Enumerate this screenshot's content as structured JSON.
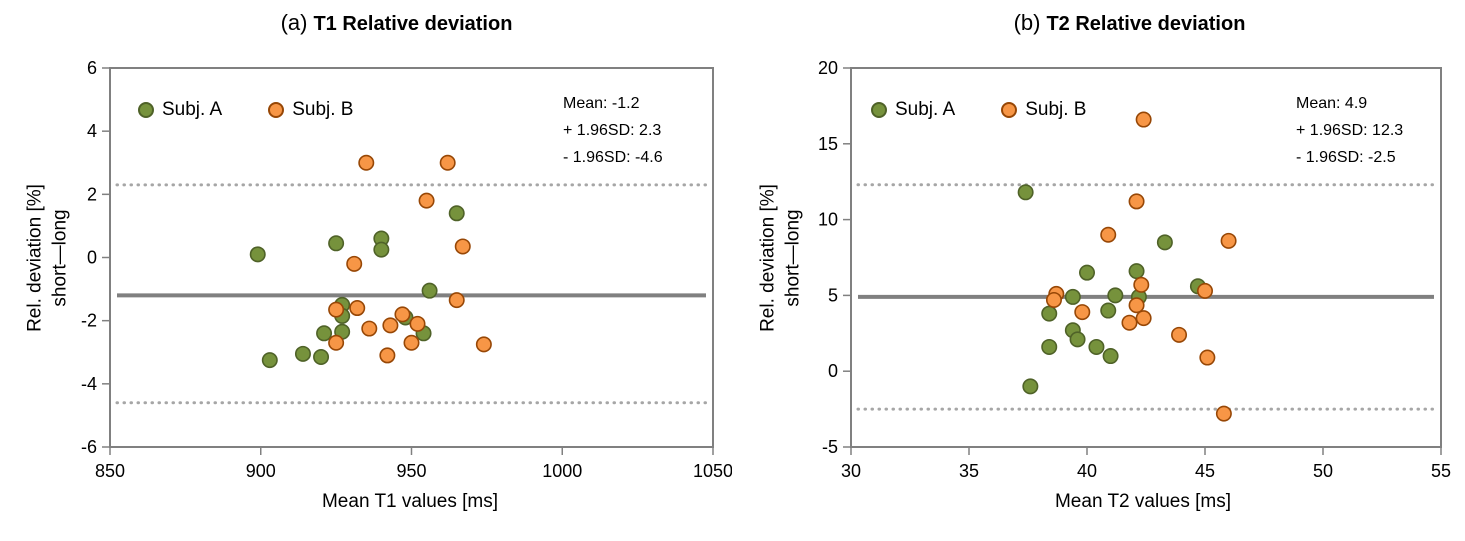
{
  "colors": {
    "background": "#ffffff",
    "text": "#000000",
    "axis": "#808080",
    "mean_line": "#808080",
    "loa_line": "#a6a6a6"
  },
  "chart_data": [
    {
      "type": "scatter",
      "title_prefix": "(a)",
      "title": "T1 Relative deviation",
      "xlabel": "Mean T1 values [ms]",
      "ylabel_line1": "Rel. deviation [%]",
      "ylabel_line2": "short—long",
      "xlim": [
        850,
        1050
      ],
      "ylim": [
        -6,
        6
      ],
      "xticks": [
        850,
        900,
        950,
        1000,
        1050
      ],
      "yticks": [
        6,
        4,
        2,
        0,
        -2,
        -4,
        -6
      ],
      "mean": -1.2,
      "upper_loa": 2.3,
      "lower_loa": -4.6,
      "stats_lines": [
        "Mean: -1.2",
        "+ 1.96SD: 2.3",
        "- 1.96SD: -4.6"
      ],
      "legend_position": "top-left",
      "grid": false,
      "series": [
        {
          "name": "Subj. A",
          "fill": "#76923C",
          "stroke": "#4F6228",
          "points": [
            [
              899,
              0.1
            ],
            [
              925,
              0.45
            ],
            [
              940,
              0.6
            ],
            [
              940,
              0.25
            ],
            [
              965,
              1.4
            ],
            [
              956,
              -1.05
            ],
            [
              927,
              -1.5
            ],
            [
              927,
              -1.85
            ],
            [
              948,
              -1.9
            ],
            [
              921,
              -2.4
            ],
            [
              927,
              -2.35
            ],
            [
              954,
              -2.4
            ],
            [
              903,
              -3.25
            ],
            [
              914,
              -3.05
            ],
            [
              920,
              -3.15
            ]
          ]
        },
        {
          "name": "Subj. B",
          "fill": "#F79646",
          "stroke": "#974706",
          "points": [
            [
              935,
              3.0
            ],
            [
              962,
              3.0
            ],
            [
              955,
              1.8
            ],
            [
              967,
              0.35
            ],
            [
              931,
              -0.2
            ],
            [
              965,
              -1.35
            ],
            [
              925,
              -1.65
            ],
            [
              932,
              -1.6
            ],
            [
              947,
              -1.8
            ],
            [
              952,
              -2.1
            ],
            [
              943,
              -2.15
            ],
            [
              936,
              -2.25
            ],
            [
              925,
              -2.7
            ],
            [
              950,
              -2.7
            ],
            [
              942,
              -3.1
            ],
            [
              974,
              -2.75
            ]
          ]
        }
      ]
    },
    {
      "type": "scatter",
      "title_prefix": "(b)",
      "title": "T2 Relative deviation",
      "xlabel": "Mean T2 values [ms]",
      "ylabel_line1": "Rel. deviation [%]",
      "ylabel_line2": "short—long",
      "xlim": [
        30,
        55
      ],
      "ylim": [
        -5,
        20
      ],
      "xticks": [
        30,
        35,
        40,
        45,
        50,
        55
      ],
      "yticks": [
        20,
        15,
        10,
        5,
        0,
        -5
      ],
      "mean": 4.9,
      "upper_loa": 12.3,
      "lower_loa": -2.5,
      "stats_lines": [
        "Mean: 4.9",
        "+ 1.96SD: 12.3",
        "- 1.96SD: -2.5"
      ],
      "legend_position": "top-left",
      "grid": false,
      "series": [
        {
          "name": "Subj. A",
          "fill": "#76923C",
          "stroke": "#4F6228",
          "points": [
            [
              37.4,
              11.8
            ],
            [
              43.3,
              8.5
            ],
            [
              40.0,
              6.5
            ],
            [
              42.1,
              6.6
            ],
            [
              44.7,
              5.6
            ],
            [
              42.2,
              4.9
            ],
            [
              39.4,
              4.9
            ],
            [
              41.2,
              5.0
            ],
            [
              40.9,
              4.0
            ],
            [
              38.4,
              3.8
            ],
            [
              39.4,
              2.7
            ],
            [
              39.6,
              2.1
            ],
            [
              38.4,
              1.6
            ],
            [
              40.4,
              1.6
            ],
            [
              41.0,
              1.0
            ],
            [
              37.6,
              -1.0
            ]
          ]
        },
        {
          "name": "Subj. B",
          "fill": "#F79646",
          "stroke": "#974706",
          "points": [
            [
              42.4,
              16.6
            ],
            [
              42.1,
              11.2
            ],
            [
              40.9,
              9.0
            ],
            [
              46.0,
              8.6
            ],
            [
              42.3,
              5.7
            ],
            [
              38.7,
              5.1
            ],
            [
              38.6,
              4.7
            ],
            [
              45.0,
              5.3
            ],
            [
              42.1,
              4.35
            ],
            [
              41.8,
              3.2
            ],
            [
              42.4,
              3.5
            ],
            [
              39.8,
              3.9
            ],
            [
              43.9,
              2.4
            ],
            [
              45.1,
              0.9
            ],
            [
              45.8,
              -2.8
            ]
          ]
        }
      ]
    }
  ]
}
